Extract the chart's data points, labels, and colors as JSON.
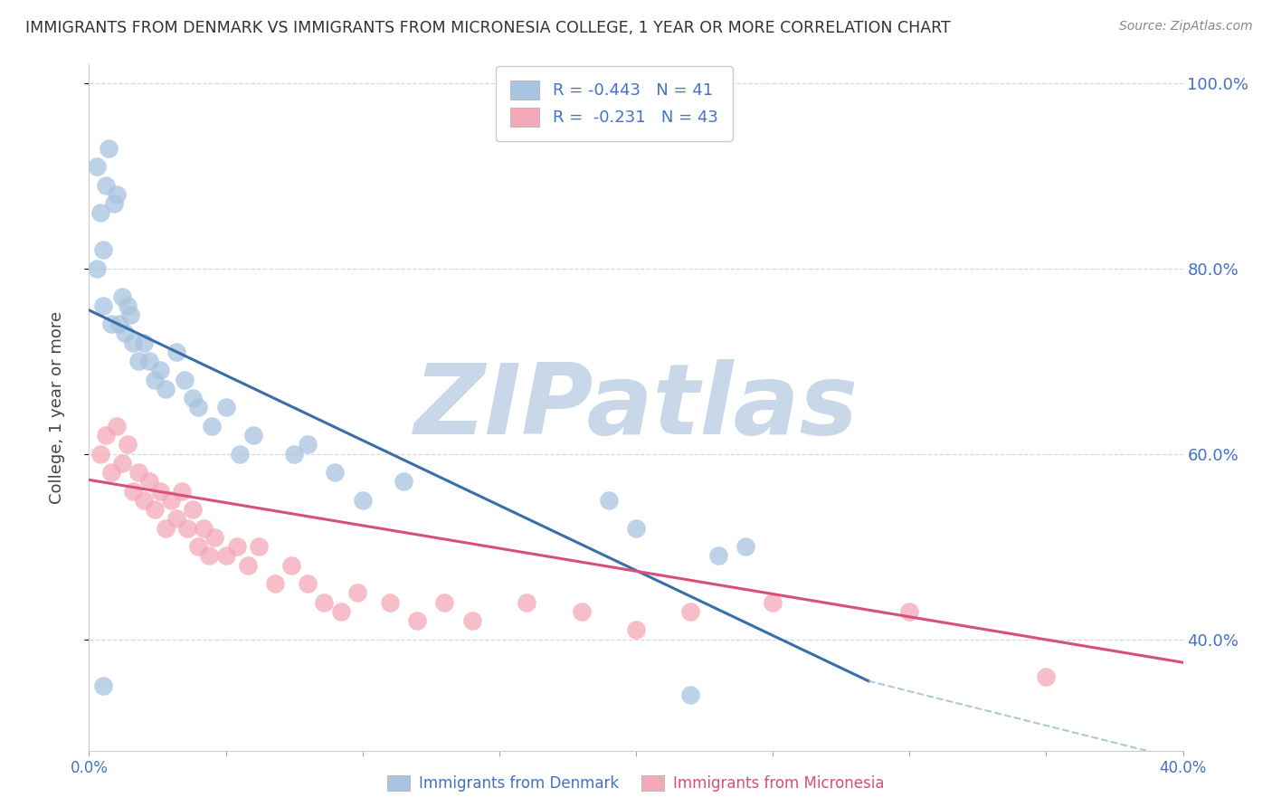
{
  "title": "IMMIGRANTS FROM DENMARK VS IMMIGRANTS FROM MICRONESIA COLLEGE, 1 YEAR OR MORE CORRELATION CHART",
  "source": "Source: ZipAtlas.com",
  "ylabel": "College, 1 year or more",
  "xlabel_blue": "Immigrants from Denmark",
  "xlabel_pink": "Immigrants from Micronesia",
  "R_blue": -0.443,
  "N_blue": 41,
  "R_pink": -0.231,
  "N_pink": 43,
  "xlim": [
    0.0,
    0.4
  ],
  "ylim": [
    0.28,
    1.02
  ],
  "x_ticks_labeled": [
    0.0,
    0.4
  ],
  "y_ticks": [
    0.4,
    0.6,
    0.8,
    1.0
  ],
  "blue_color": "#a8c4e0",
  "blue_line_color": "#3a6ea8",
  "pink_color": "#f4a8b8",
  "pink_line_color": "#d94f7a",
  "blue_scatter_x": [
    0.003,
    0.006,
    0.004,
    0.007,
    0.01,
    0.009,
    0.005,
    0.008,
    0.003,
    0.005,
    0.012,
    0.015,
    0.013,
    0.011,
    0.016,
    0.014,
    0.018,
    0.02,
    0.022,
    0.024,
    0.026,
    0.028,
    0.032,
    0.035,
    0.038,
    0.04,
    0.045,
    0.05,
    0.055,
    0.06,
    0.075,
    0.08,
    0.09,
    0.1,
    0.115,
    0.19,
    0.2,
    0.24,
    0.005,
    0.23,
    0.22
  ],
  "blue_scatter_y": [
    0.91,
    0.89,
    0.86,
    0.93,
    0.88,
    0.87,
    0.76,
    0.74,
    0.8,
    0.82,
    0.77,
    0.75,
    0.73,
    0.74,
    0.72,
    0.76,
    0.7,
    0.72,
    0.7,
    0.68,
    0.69,
    0.67,
    0.71,
    0.68,
    0.66,
    0.65,
    0.63,
    0.65,
    0.6,
    0.62,
    0.6,
    0.61,
    0.58,
    0.55,
    0.57,
    0.55,
    0.52,
    0.5,
    0.35,
    0.49,
    0.34
  ],
  "pink_scatter_x": [
    0.004,
    0.006,
    0.008,
    0.01,
    0.012,
    0.014,
    0.016,
    0.018,
    0.02,
    0.022,
    0.024,
    0.026,
    0.028,
    0.03,
    0.032,
    0.034,
    0.036,
    0.038,
    0.04,
    0.042,
    0.044,
    0.046,
    0.05,
    0.054,
    0.058,
    0.062,
    0.068,
    0.074,
    0.08,
    0.086,
    0.092,
    0.098,
    0.11,
    0.12,
    0.13,
    0.14,
    0.16,
    0.18,
    0.2,
    0.22,
    0.25,
    0.3,
    0.35
  ],
  "pink_scatter_y": [
    0.6,
    0.62,
    0.58,
    0.63,
    0.59,
    0.61,
    0.56,
    0.58,
    0.55,
    0.57,
    0.54,
    0.56,
    0.52,
    0.55,
    0.53,
    0.56,
    0.52,
    0.54,
    0.5,
    0.52,
    0.49,
    0.51,
    0.49,
    0.5,
    0.48,
    0.5,
    0.46,
    0.48,
    0.46,
    0.44,
    0.43,
    0.45,
    0.44,
    0.42,
    0.44,
    0.42,
    0.44,
    0.43,
    0.41,
    0.43,
    0.44,
    0.43,
    0.36
  ],
  "watermark": "ZIPatlas",
  "watermark_color": "#c8d8e8",
  "background_color": "#ffffff",
  "grid_color": "#d0d8e0"
}
